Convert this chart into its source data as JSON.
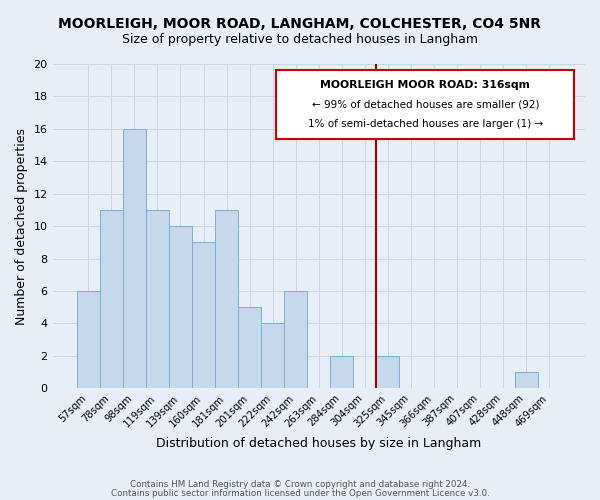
{
  "title": "MOORLEIGH, MOOR ROAD, LANGHAM, COLCHESTER, CO4 5NR",
  "subtitle": "Size of property relative to detached houses in Langham",
  "xlabel": "Distribution of detached houses by size in Langham",
  "ylabel": "Number of detached properties",
  "bar_labels": [
    "57sqm",
    "78sqm",
    "98sqm",
    "119sqm",
    "139sqm",
    "160sqm",
    "181sqm",
    "201sqm",
    "222sqm",
    "242sqm",
    "263sqm",
    "284sqm",
    "304sqm",
    "325sqm",
    "345sqm",
    "366sqm",
    "387sqm",
    "407sqm",
    "428sqm",
    "448sqm",
    "469sqm"
  ],
  "bar_values": [
    6,
    11,
    16,
    11,
    10,
    9,
    11,
    5,
    4,
    6,
    0,
    2,
    0,
    2,
    0,
    0,
    0,
    0,
    0,
    1,
    0
  ],
  "bar_color": "#c5d8ec",
  "bar_edge_color": "#7aaed0",
  "grid_color": "#c8d4e0",
  "bg_color": "#e8eef6",
  "vline_color": "#990000",
  "vline_x_index": 13.0,
  "annotation_box_color": "#cc0000",
  "annotation_title": "MOORLEIGH MOOR ROAD: 316sqm",
  "annotation_line1": "← 99% of detached houses are smaller (92)",
  "annotation_line2": "1% of semi-detached houses are larger (1) →",
  "footer1": "Contains HM Land Registry data © Crown copyright and database right 2024.",
  "footer2": "Contains public sector information licensed under the Open Government Licence v3.0.",
  "ylim": [
    0,
    20
  ],
  "yticks": [
    0,
    2,
    4,
    6,
    8,
    10,
    12,
    14,
    16,
    18,
    20
  ]
}
